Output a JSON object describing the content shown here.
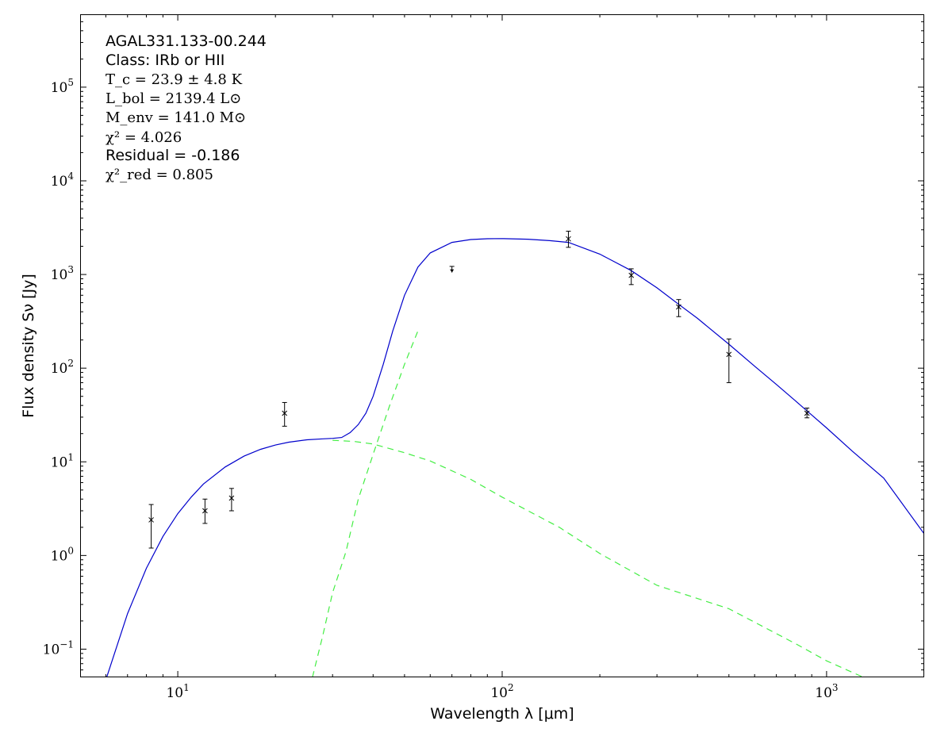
{
  "chart_data": {
    "type": "scatter",
    "xscale": "log",
    "yscale": "log",
    "xlim": [
      5,
      2000
    ],
    "ylim": [
      0.05,
      600000
    ],
    "xlabel": "Wavelength λ [μm]",
    "ylabel": "Flux density Sν [Jy]",
    "x_ticks": [
      {
        "value": 10,
        "base": "10",
        "exp": "1"
      },
      {
        "value": 100,
        "base": "10",
        "exp": "2"
      },
      {
        "value": 1000,
        "base": "10",
        "exp": "3"
      }
    ],
    "y_ticks": [
      {
        "value": 0.1,
        "base": "10",
        "exp": "−1"
      },
      {
        "value": 1,
        "base": "10",
        "exp": "0"
      },
      {
        "value": 10,
        "base": "10",
        "exp": "1"
      },
      {
        "value": 100,
        "base": "10",
        "exp": "2"
      },
      {
        "value": 1000,
        "base": "10",
        "exp": "3"
      },
      {
        "value": 10000,
        "base": "10",
        "exp": "4"
      },
      {
        "value": 100000,
        "base": "10",
        "exp": "5"
      }
    ],
    "annotations": {
      "source": "AGAL331.133-00.244",
      "class": "Class: IRb or HII",
      "tc": "T_c = 23.9 ± 4.8 K",
      "lbol": "L_bol = 2139.4 L⊙",
      "menv": "M_env = 141.0 M⊙",
      "chi2": "χ² = 4.026",
      "residual": "Residual = -0.186",
      "chi2_red": "χ²_red = 0.805"
    },
    "points": [
      {
        "x": 8.28,
        "y": 2.4,
        "lo": 1.2,
        "hi": 3.5,
        "upper": false
      },
      {
        "x": 12.13,
        "y": 3.0,
        "lo": 2.2,
        "hi": 4.0,
        "upper": false
      },
      {
        "x": 14.65,
        "y": 4.1,
        "lo": 3.0,
        "hi": 5.2,
        "upper": false
      },
      {
        "x": 21.34,
        "y": 33,
        "lo": 24,
        "hi": 43,
        "upper": false
      },
      {
        "x": 70,
        "y": 1220,
        "lo": 1050,
        "hi": 1220,
        "upper": true
      },
      {
        "x": 160,
        "y": 2400,
        "lo": 1950,
        "hi": 2900,
        "upper": false
      },
      {
        "x": 250,
        "y": 980,
        "lo": 780,
        "hi": 1150,
        "upper": false
      },
      {
        "x": 350,
        "y": 450,
        "lo": 355,
        "hi": 540,
        "upper": false
      },
      {
        "x": 500,
        "y": 140,
        "lo": 70,
        "hi": 205,
        "upper": false
      },
      {
        "x": 870,
        "y": 33,
        "lo": 29.5,
        "hi": 37.5,
        "upper": false
      }
    ],
    "series": [
      {
        "name": "",
        "style": "solid",
        "color": "#0000cc",
        "x": [
          6,
          7,
          8,
          9,
          10,
          11,
          12,
          14,
          16,
          18,
          20,
          22,
          25,
          28,
          30,
          32,
          34,
          36,
          38,
          40,
          43,
          46,
          50,
          55,
          60,
          70,
          80,
          90,
          100,
          120,
          140,
          160,
          200,
          250,
          300,
          350,
          400,
          500,
          600,
          700,
          800,
          1000,
          1200,
          1500,
          2000
        ],
        "y": [
          0.047,
          0.24,
          0.73,
          1.6,
          2.8,
          4.2,
          5.8,
          8.8,
          11.5,
          13.6,
          15.1,
          16.2,
          17.2,
          17.6,
          17.8,
          18.2,
          20.5,
          25,
          33,
          50,
          110,
          250,
          600,
          1200,
          1700,
          2200,
          2360,
          2410,
          2420,
          2380,
          2300,
          2200,
          1650,
          1100,
          720,
          480,
          340,
          180,
          105,
          67,
          45,
          23,
          13,
          6.7,
          1.7
        ]
      },
      {
        "name": "",
        "style": "dashed",
        "color": "#44ee44",
        "x": [
          30,
          35,
          40,
          50,
          60,
          80,
          100,
          150,
          200,
          300,
          500,
          800,
          1000,
          1300
        ],
        "y": [
          17,
          16.5,
          15.5,
          12.5,
          10.2,
          6.5,
          4.2,
          2.0,
          1.05,
          0.48,
          0.27,
          0.115,
          0.075,
          0.05
        ]
      },
      {
        "name": "",
        "style": "dashed",
        "color": "#44ee44",
        "x": [
          26,
          28,
          30,
          33,
          36,
          40,
          45,
          50,
          55
        ],
        "y": [
          0.05,
          0.14,
          0.4,
          1.1,
          4,
          12,
          40,
          110,
          250
        ]
      }
    ]
  }
}
